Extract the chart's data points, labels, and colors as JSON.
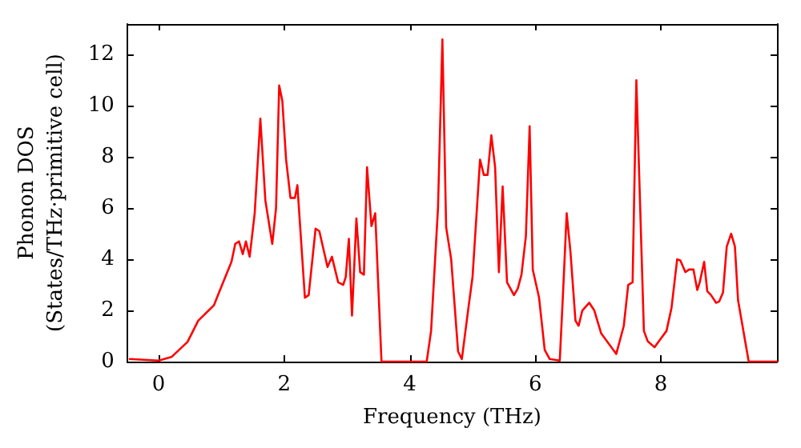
{
  "chart_data": {
    "type": "line",
    "xlabel": "Frequency (THz)",
    "ylabel": "Phonon DOS\n(States/THz·primitive cell)",
    "xlim": [
      -0.5,
      9.85
    ],
    "ylim": [
      0,
      13.2
    ],
    "xticks": [
      0,
      2,
      4,
      6,
      8
    ],
    "yticks": [
      0,
      2,
      4,
      6,
      8,
      10,
      12
    ],
    "grid": false,
    "marker": "none",
    "line_style": "solid",
    "series": [
      {
        "color": "#ff0000",
        "x": [
          -0.46,
          0,
          0.21,
          0.46,
          0.63,
          0.88,
          0.97,
          1.16,
          1.22,
          1.28,
          1.34,
          1.39,
          1.45,
          1.53,
          1.62,
          1.7,
          1.81,
          1.87,
          1.92,
          1.97,
          2.03,
          2.1,
          2.17,
          2.21,
          2.33,
          2.39,
          2.5,
          2.56,
          2.69,
          2.76,
          2.86,
          2.94,
          2.98,
          3.03,
          3.08,
          3.15,
          3.21,
          3.27,
          3.32,
          3.39,
          3.45,
          3.55,
          4.27,
          4.34,
          4.45,
          4.52,
          4.58,
          4.66,
          4.77,
          4.83,
          4.94,
          5.0,
          5.12,
          5.18,
          5.24,
          5.3,
          5.36,
          5.42,
          5.48,
          5.55,
          5.66,
          5.72,
          5.78,
          5.85,
          5.91,
          5.96,
          6.06,
          6.15,
          6.23,
          6.39,
          6.45,
          6.5,
          6.56,
          6.64,
          6.69,
          6.75,
          6.86,
          6.94,
          7.05,
          7.29,
          7.41,
          7.48,
          7.55,
          7.61,
          7.73,
          7.79,
          7.9,
          8.0,
          8.09,
          8.17,
          8.26,
          8.31,
          8.39,
          8.45,
          8.52,
          8.58,
          8.62,
          8.69,
          8.74,
          8.8,
          8.88,
          8.93,
          8.99,
          9.05,
          9.12,
          9.18,
          9.23,
          9.4,
          9.85
        ],
        "values": [
          0.1,
          0.04,
          0.19,
          0.77,
          1.6,
          2.2,
          2.75,
          3.9,
          4.6,
          4.7,
          4.2,
          4.7,
          4.1,
          5.8,
          9.5,
          6.3,
          4.6,
          6.0,
          10.8,
          10.2,
          7.9,
          6.4,
          6.4,
          6.9,
          2.5,
          2.6,
          5.2,
          5.1,
          3.7,
          4.1,
          3.1,
          3.0,
          3.3,
          4.8,
          1.8,
          5.6,
          3.5,
          3.4,
          7.6,
          5.3,
          5.8,
          0,
          0,
          1.2,
          6.0,
          12.6,
          5.25,
          4.0,
          0.4,
          0.1,
          2.2,
          3.3,
          7.9,
          7.3,
          7.3,
          8.85,
          7.6,
          3.5,
          6.85,
          3.1,
          2.6,
          2.85,
          3.4,
          4.9,
          9.2,
          3.6,
          2.5,
          0.46,
          0.1,
          0.04,
          3.1,
          5.8,
          4.3,
          1.6,
          1.4,
          2.0,
          2.3,
          2.0,
          1.1,
          0.3,
          1.4,
          3.0,
          3.1,
          11.0,
          1.2,
          0.8,
          0.56,
          0.9,
          1.2,
          2.1,
          4.0,
          3.96,
          3.5,
          3.6,
          3.6,
          2.8,
          3.1,
          3.9,
          2.75,
          2.6,
          2.3,
          2.35,
          2.7,
          4.5,
          5.0,
          4.5,
          2.4,
          0,
          0
        ]
      }
    ]
  }
}
